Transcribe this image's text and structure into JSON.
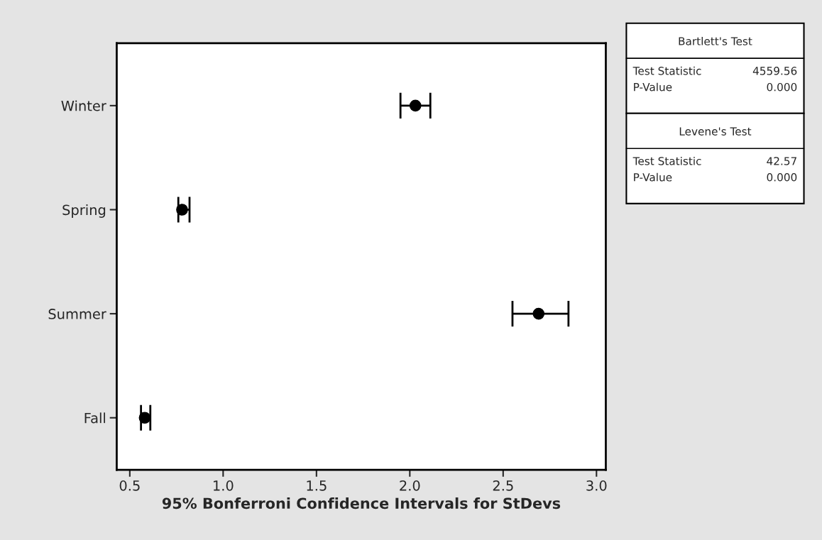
{
  "chart_data": {
    "type": "scatter",
    "orientation": "horizontal",
    "categories": [
      "Winter",
      "Spring",
      "Summer",
      "Fall"
    ],
    "values": [
      2.03,
      0.78,
      2.69,
      0.58
    ],
    "errors": [
      [
        1.95,
        2.11
      ],
      [
        0.76,
        0.82
      ],
      [
        2.55,
        2.85
      ],
      [
        0.56,
        0.61
      ]
    ],
    "color": "#000000",
    "marker": "circle",
    "xlim": [
      0.43,
      3.05
    ],
    "xticks": [
      0.5,
      {
        "value": 1,
        "label": "1.0"
      },
      1.5,
      {
        "value": 2,
        "label": "2.0"
      },
      2.5,
      {
        "value": 3,
        "label": "3.0"
      }
    ],
    "xlabel": "95% Bonferroni Confidence Intervals for StDevs",
    "grid": false,
    "annotations": [
      "Bartlett's Test",
      "Test Statistic",
      "4559.56",
      "P-Value",
      "0.000",
      "Levene's Test",
      "Test Statistic",
      "42.57",
      "P-Value",
      "0.000"
    ]
  }
}
